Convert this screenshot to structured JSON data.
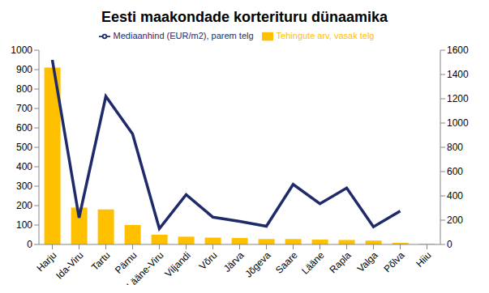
{
  "chart_data": {
    "type": "bar",
    "title": "Eesti maakondade korterituru dünaamika",
    "categories": [
      "Harju",
      "Ida-Viru",
      "Tartu",
      "Pärnu",
      "Lääne-Viru",
      "Viljandi",
      "Võru",
      "Järva",
      "Jõgeva",
      "Saare",
      "Lääne",
      "Rapla",
      "Valga",
      "Põlva",
      "Hiiu"
    ],
    "series": [
      {
        "name": "Tehingute arv, vasak telg",
        "type": "bar",
        "color": "#ffc000",
        "values": [
          910,
          190,
          180,
          100,
          50,
          40,
          35,
          33,
          28,
          28,
          25,
          23,
          20,
          8,
          3
        ]
      },
      {
        "name": "Mediaanhind (EUR/m2), parem telg",
        "type": "line",
        "axis": "y2",
        "color": "#1f2a6b",
        "values": [
          1520,
          220,
          1220,
          910,
          130,
          410,
          225,
          190,
          150,
          495,
          335,
          465,
          145,
          275,
          null
        ]
      }
    ],
    "ylim": [
      0,
      1000
    ],
    "yticks": [
      0,
      100,
      200,
      300,
      400,
      500,
      600,
      700,
      800,
      900,
      1000
    ],
    "y2lim": [
      0,
      1600
    ],
    "y2ticks": [
      0,
      200,
      400,
      600,
      800,
      1000,
      1200,
      1400,
      1600
    ],
    "grid": false,
    "legend": "top"
  }
}
